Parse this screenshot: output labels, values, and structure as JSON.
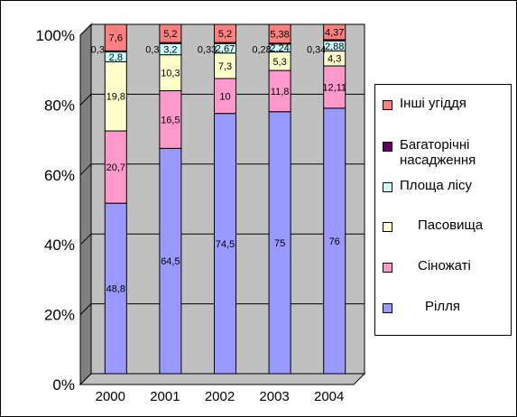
{
  "chart_data": {
    "type": "bar",
    "stacked": "percent",
    "categories": [
      "2000",
      "2001",
      "2002",
      "2003",
      "2004"
    ],
    "y_ticks": [
      "0%",
      "20%",
      "40%",
      "60%",
      "80%",
      "100%"
    ],
    "ylim": [
      0,
      100
    ],
    "grid": true,
    "legend_position": "right",
    "series": [
      {
        "name": "Рілля",
        "color": "#9999ff",
        "values": [
          48.8,
          64.5,
          74.5,
          75,
          76
        ],
        "labels": [
          "48,8",
          "64,5",
          "74,5",
          "75",
          "76"
        ]
      },
      {
        "name": "Сіножаті",
        "color": "#ff99cc",
        "values": [
          20.7,
          16.5,
          10,
          11.8,
          12.11
        ],
        "labels": [
          "20,7",
          "16,5",
          "10",
          "11,8",
          "12,11"
        ]
      },
      {
        "name": "Пасовища",
        "color": "#ffffcc",
        "values": [
          19.8,
          10.3,
          7.3,
          5.3,
          4.3
        ],
        "labels": [
          "19,8",
          "10,3",
          "7,3",
          "5,3",
          "4,3"
        ]
      },
      {
        "name": "Площа лісу",
        "color": "#ccffff",
        "values": [
          2.8,
          3.2,
          2.67,
          2.24,
          2.88
        ],
        "labels": [
          "2,8",
          "3,2",
          "2,67",
          "2,24",
          "2,88"
        ]
      },
      {
        "name": "Багаторічні насадження",
        "color": "#660066",
        "values": [
          0.3,
          0.3,
          0.33,
          0.28,
          0.34
        ],
        "labels": [
          "0,3",
          "0,3",
          "0,33",
          "0,28",
          "0,34"
        ]
      },
      {
        "name": "Інші угіддя",
        "color": "#ff8080",
        "values": [
          7.6,
          5.2,
          5.2,
          5.38,
          4.37
        ],
        "labels": [
          "7,6",
          "5,2",
          "5,2",
          "5,38",
          "4,37"
        ]
      }
    ],
    "legend_order": [
      5,
      4,
      3,
      2,
      1,
      0
    ],
    "legend_labels": [
      "Інші угіддя",
      "Багаторічні насадження",
      "Площа лісу",
      "Пасовища",
      "Сіножаті",
      "Рілля"
    ]
  }
}
